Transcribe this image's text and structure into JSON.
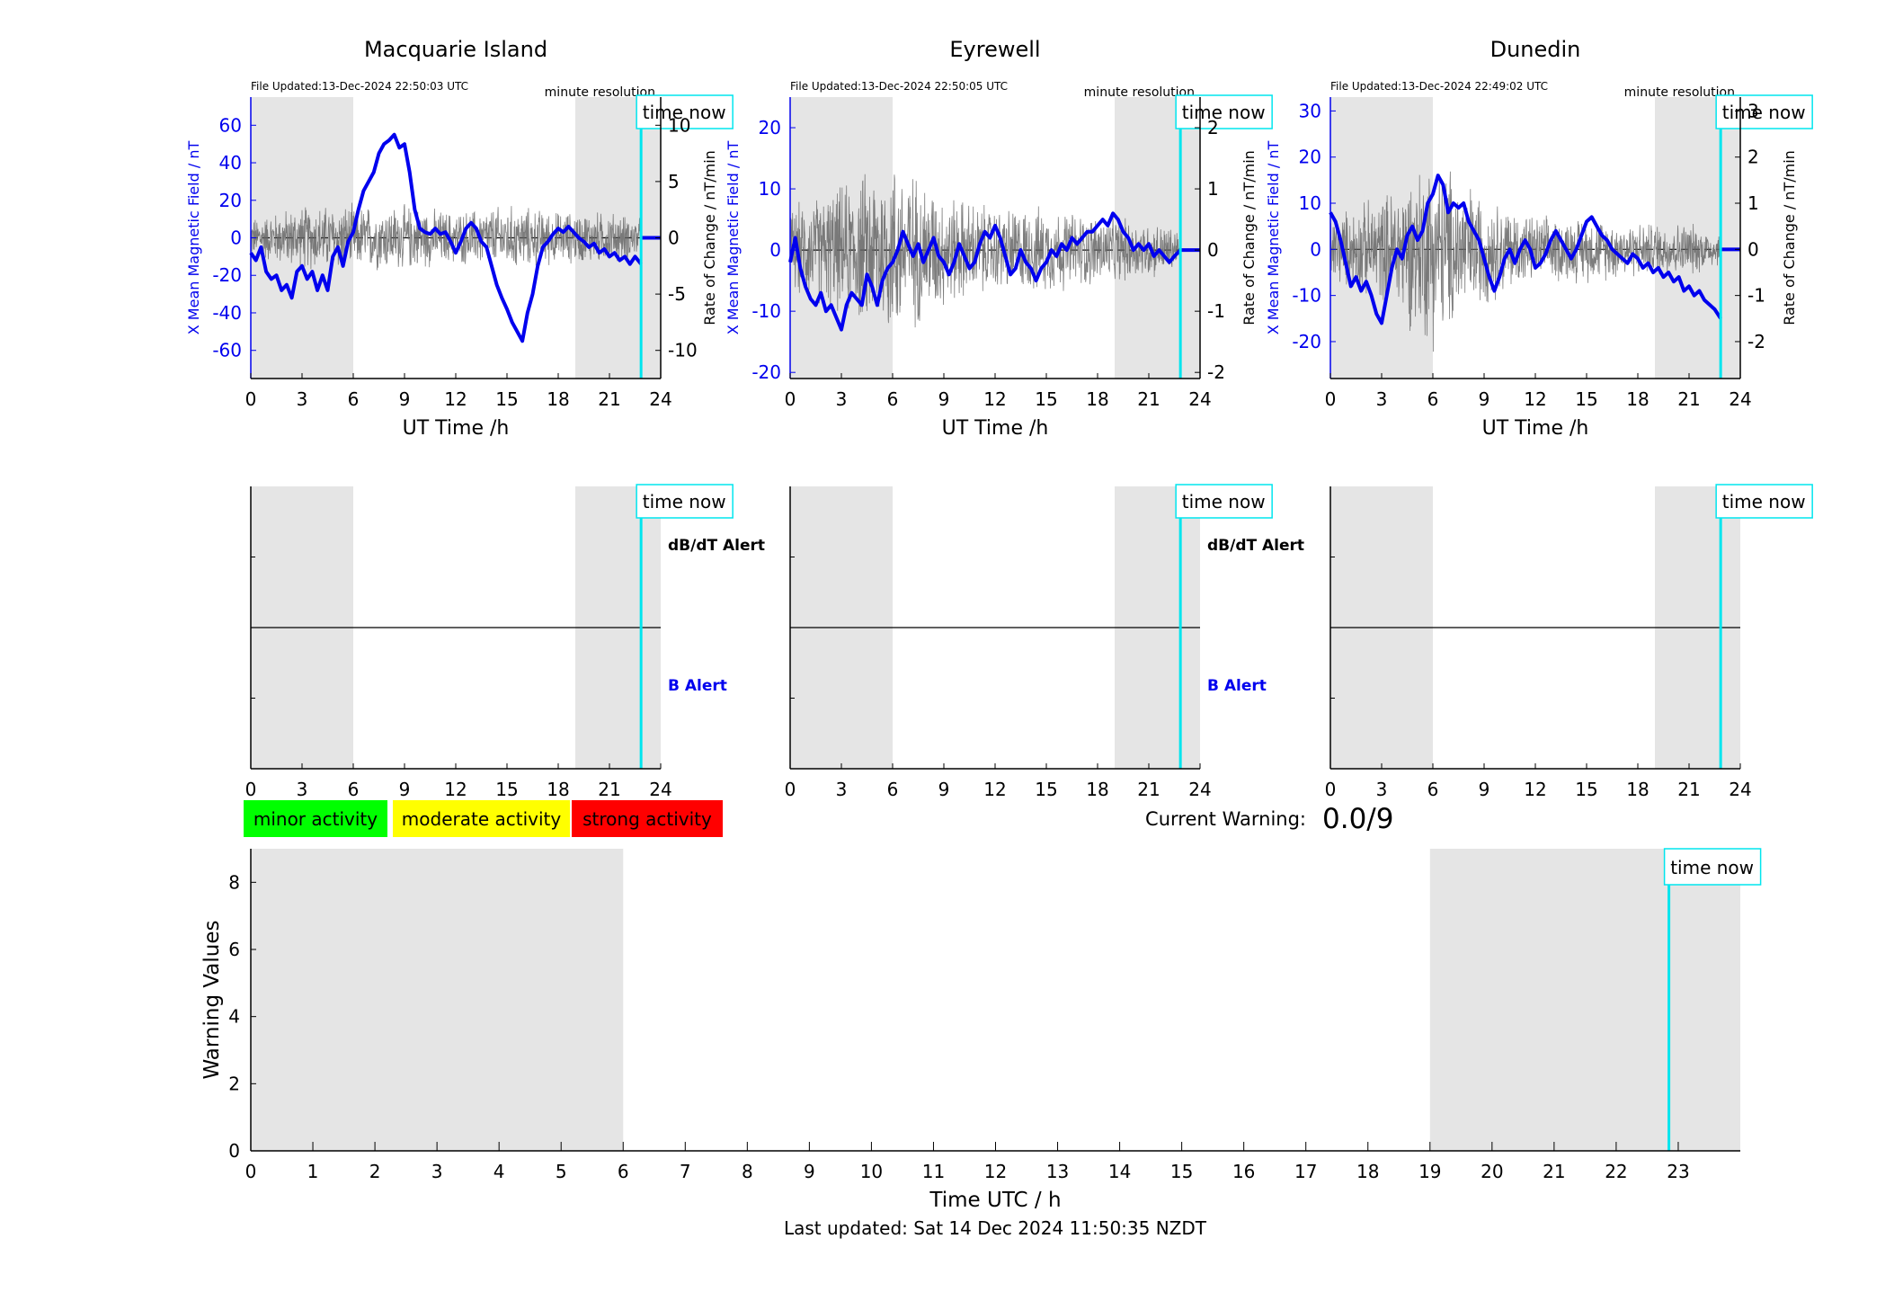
{
  "colors": {
    "b_series": "#0000ee",
    "db_series": "#666666",
    "night_shade": "#e5e5e5",
    "time_now": "#00e5ee",
    "minor": "#00ff00",
    "moderate": "#ffff00",
    "strong": "#ff0000"
  },
  "common": {
    "time_now_label": "time now",
    "minute_resolution": "minute resolution",
    "x_label": "UT Time /h",
    "b_axis_label": "X Mean Magnetic Field / nT",
    "rate_axis_label": "Rate of Change / nT/min",
    "dbdt_alert_label": "dB/dT Alert",
    "b_alert_label": "B Alert",
    "x_ticks": [
      0,
      3,
      6,
      9,
      12,
      15,
      18,
      21,
      24
    ],
    "time_now_h": 22.85
  },
  "stations": [
    {
      "name": "Macquarie Island",
      "file_updated": "File Updated:13-Dec-2024 22:50:03 UTC",
      "y_ticks": [
        60,
        40,
        20,
        0,
        -20,
        -40,
        -60
      ],
      "ylim": [
        -75,
        75
      ],
      "right_ticks": [
        10,
        5,
        0,
        -5,
        -10
      ],
      "rlim": [
        -12.5,
        12.5
      ],
      "shade": [
        [
          0,
          6
        ],
        [
          19,
          24
        ]
      ],
      "show_alert_labels": true,
      "b_points": [
        [
          0,
          -8
        ],
        [
          0.3,
          -12
        ],
        [
          0.6,
          -5
        ],
        [
          0.9,
          -18
        ],
        [
          1.2,
          -22
        ],
        [
          1.5,
          -20
        ],
        [
          1.8,
          -28
        ],
        [
          2.1,
          -25
        ],
        [
          2.4,
          -32
        ],
        [
          2.7,
          -18
        ],
        [
          3,
          -15
        ],
        [
          3.3,
          -22
        ],
        [
          3.6,
          -18
        ],
        [
          3.9,
          -28
        ],
        [
          4.2,
          -20
        ],
        [
          4.5,
          -28
        ],
        [
          4.8,
          -10
        ],
        [
          5.1,
          -5
        ],
        [
          5.4,
          -15
        ],
        [
          5.7,
          -2
        ],
        [
          6,
          3
        ],
        [
          6.3,
          15
        ],
        [
          6.6,
          25
        ],
        [
          6.9,
          30
        ],
        [
          7.2,
          35
        ],
        [
          7.5,
          45
        ],
        [
          7.8,
          50
        ],
        [
          8.1,
          52
        ],
        [
          8.4,
          55
        ],
        [
          8.7,
          48
        ],
        [
          9,
          50
        ],
        [
          9.3,
          35
        ],
        [
          9.6,
          15
        ],
        [
          9.9,
          5
        ],
        [
          10.2,
          3
        ],
        [
          10.5,
          2
        ],
        [
          10.8,
          5
        ],
        [
          11.1,
          2
        ],
        [
          11.4,
          3
        ],
        [
          11.7,
          -2
        ],
        [
          12,
          -8
        ],
        [
          12.3,
          -2
        ],
        [
          12.6,
          5
        ],
        [
          12.9,
          8
        ],
        [
          13.2,
          5
        ],
        [
          13.5,
          -2
        ],
        [
          13.8,
          -5
        ],
        [
          14.1,
          -15
        ],
        [
          14.4,
          -25
        ],
        [
          14.7,
          -32
        ],
        [
          15,
          -38
        ],
        [
          15.3,
          -45
        ],
        [
          15.6,
          -50
        ],
        [
          15.9,
          -55
        ],
        [
          16.2,
          -40
        ],
        [
          16.5,
          -30
        ],
        [
          16.8,
          -15
        ],
        [
          17.1,
          -5
        ],
        [
          17.4,
          -2
        ],
        [
          17.7,
          2
        ],
        [
          18,
          5
        ],
        [
          18.3,
          3
        ],
        [
          18.6,
          6
        ],
        [
          18.9,
          3
        ],
        [
          19.2,
          0
        ],
        [
          19.5,
          -2
        ],
        [
          19.8,
          -5
        ],
        [
          20.1,
          -3
        ],
        [
          20.4,
          -8
        ],
        [
          20.7,
          -6
        ],
        [
          21,
          -10
        ],
        [
          21.3,
          -8
        ],
        [
          21.6,
          -12
        ],
        [
          21.9,
          -10
        ],
        [
          22.2,
          -14
        ],
        [
          22.5,
          -10
        ],
        [
          22.85,
          -14
        ]
      ],
      "db_envelope": [
        [
          0,
          1.5
        ],
        [
          3,
          2.5
        ],
        [
          6,
          2.5
        ],
        [
          9,
          2.5
        ],
        [
          12,
          2
        ],
        [
          15,
          2.5
        ],
        [
          18,
          2
        ],
        [
          21,
          2
        ],
        [
          22.85,
          1.5
        ]
      ]
    },
    {
      "name": "Eyrewell",
      "file_updated": "File Updated:13-Dec-2024 22:50:05 UTC",
      "y_ticks": [
        20,
        10,
        0,
        -10,
        -20
      ],
      "ylim": [
        -21,
        25
      ],
      "right_ticks": [
        2,
        1,
        0,
        -1,
        -2
      ],
      "rlim": [
        -2.1,
        2.5
      ],
      "shade": [
        [
          0,
          6
        ],
        [
          19,
          24
        ]
      ],
      "show_alert_labels": true,
      "b_points": [
        [
          0,
          -2
        ],
        [
          0.3,
          2
        ],
        [
          0.6,
          -3
        ],
        [
          0.9,
          -6
        ],
        [
          1.2,
          -8
        ],
        [
          1.5,
          -9
        ],
        [
          1.8,
          -7
        ],
        [
          2.1,
          -10
        ],
        [
          2.4,
          -9
        ],
        [
          2.7,
          -11
        ],
        [
          3,
          -13
        ],
        [
          3.3,
          -9
        ],
        [
          3.6,
          -7
        ],
        [
          3.9,
          -8
        ],
        [
          4.2,
          -9
        ],
        [
          4.5,
          -4
        ],
        [
          4.8,
          -6
        ],
        [
          5.1,
          -9
        ],
        [
          5.4,
          -5
        ],
        [
          5.7,
          -3
        ],
        [
          6,
          -2
        ],
        [
          6.3,
          0
        ],
        [
          6.6,
          3
        ],
        [
          6.9,
          1
        ],
        [
          7.2,
          -1
        ],
        [
          7.5,
          1
        ],
        [
          7.8,
          -2
        ],
        [
          8.1,
          0
        ],
        [
          8.4,
          2
        ],
        [
          8.7,
          -1
        ],
        [
          9,
          -2
        ],
        [
          9.3,
          -4
        ],
        [
          9.6,
          -2
        ],
        [
          9.9,
          1
        ],
        [
          10.2,
          -1
        ],
        [
          10.5,
          -3
        ],
        [
          10.8,
          -2
        ],
        [
          11.1,
          1
        ],
        [
          11.4,
          3
        ],
        [
          11.7,
          2
        ],
        [
          12,
          4
        ],
        [
          12.3,
          2
        ],
        [
          12.6,
          -1
        ],
        [
          12.9,
          -4
        ],
        [
          13.2,
          -3
        ],
        [
          13.5,
          0
        ],
        [
          13.8,
          -2
        ],
        [
          14.1,
          -3
        ],
        [
          14.4,
          -5
        ],
        [
          14.7,
          -3
        ],
        [
          15,
          -2
        ],
        [
          15.3,
          0
        ],
        [
          15.6,
          -1
        ],
        [
          15.9,
          1
        ],
        [
          16.2,
          0
        ],
        [
          16.5,
          2
        ],
        [
          16.8,
          1
        ],
        [
          17.1,
          2
        ],
        [
          17.4,
          3
        ],
        [
          17.7,
          3
        ],
        [
          18,
          4
        ],
        [
          18.3,
          5
        ],
        [
          18.6,
          4
        ],
        [
          18.9,
          6
        ],
        [
          19.2,
          5
        ],
        [
          19.5,
          3
        ],
        [
          19.8,
          2
        ],
        [
          20.1,
          0
        ],
        [
          20.4,
          1
        ],
        [
          20.7,
          0
        ],
        [
          21,
          1
        ],
        [
          21.3,
          -1
        ],
        [
          21.6,
          0
        ],
        [
          21.9,
          -1
        ],
        [
          22.2,
          -2
        ],
        [
          22.5,
          -1
        ],
        [
          22.85,
          0
        ]
      ],
      "db_envelope": [
        [
          0,
          0.6
        ],
        [
          3,
          0.9
        ],
        [
          6,
          1.3
        ],
        [
          9,
          0.8
        ],
        [
          12,
          0.6
        ],
        [
          15,
          0.6
        ],
        [
          18,
          0.5
        ],
        [
          21,
          0.4
        ],
        [
          22.85,
          0.3
        ]
      ]
    },
    {
      "name": "Dunedin",
      "file_updated": "File Updated:13-Dec-2024 22:49:02 UTC",
      "y_ticks": [
        30,
        20,
        10,
        0,
        -10,
        -20
      ],
      "ylim": [
        -28,
        33
      ],
      "right_ticks": [
        3,
        2,
        1,
        0,
        -1,
        -2
      ],
      "rlim": [
        -2.8,
        3.3
      ],
      "shade": [
        [
          0,
          6
        ],
        [
          19,
          24
        ]
      ],
      "show_alert_labels": false,
      "b_points": [
        [
          0,
          8
        ],
        [
          0.3,
          6
        ],
        [
          0.6,
          2
        ],
        [
          0.9,
          -3
        ],
        [
          1.2,
          -8
        ],
        [
          1.5,
          -6
        ],
        [
          1.8,
          -9
        ],
        [
          2.1,
          -7
        ],
        [
          2.4,
          -10
        ],
        [
          2.7,
          -14
        ],
        [
          3,
          -16
        ],
        [
          3.3,
          -10
        ],
        [
          3.6,
          -4
        ],
        [
          3.9,
          0
        ],
        [
          4.2,
          -2
        ],
        [
          4.5,
          3
        ],
        [
          4.8,
          5
        ],
        [
          5.1,
          2
        ],
        [
          5.4,
          4
        ],
        [
          5.7,
          10
        ],
        [
          6,
          12
        ],
        [
          6.3,
          16
        ],
        [
          6.6,
          14
        ],
        [
          6.9,
          8
        ],
        [
          7.2,
          10
        ],
        [
          7.5,
          9
        ],
        [
          7.8,
          10
        ],
        [
          8.1,
          6
        ],
        [
          8.4,
          4
        ],
        [
          8.7,
          2
        ],
        [
          9,
          -2
        ],
        [
          9.3,
          -6
        ],
        [
          9.6,
          -9
        ],
        [
          9.9,
          -6
        ],
        [
          10.2,
          -2
        ],
        [
          10.5,
          0
        ],
        [
          10.8,
          -3
        ],
        [
          11.1,
          0
        ],
        [
          11.4,
          2
        ],
        [
          11.7,
          0
        ],
        [
          12,
          -4
        ],
        [
          12.3,
          -3
        ],
        [
          12.6,
          -1
        ],
        [
          12.9,
          2
        ],
        [
          13.2,
          4
        ],
        [
          13.5,
          2
        ],
        [
          13.8,
          0
        ],
        [
          14.1,
          -2
        ],
        [
          14.4,
          0
        ],
        [
          14.7,
          3
        ],
        [
          15,
          6
        ],
        [
          15.3,
          7
        ],
        [
          15.6,
          5
        ],
        [
          15.9,
          3
        ],
        [
          16.2,
          2
        ],
        [
          16.5,
          0
        ],
        [
          16.8,
          -1
        ],
        [
          17.1,
          -2
        ],
        [
          17.4,
          -3
        ],
        [
          17.7,
          -1
        ],
        [
          18,
          -2
        ],
        [
          18.3,
          -4
        ],
        [
          18.6,
          -3
        ],
        [
          18.9,
          -5
        ],
        [
          19.2,
          -4
        ],
        [
          19.5,
          -6
        ],
        [
          19.8,
          -5
        ],
        [
          20.1,
          -7
        ],
        [
          20.4,
          -6
        ],
        [
          20.7,
          -9
        ],
        [
          21,
          -8
        ],
        [
          21.3,
          -10
        ],
        [
          21.6,
          -9
        ],
        [
          21.9,
          -11
        ],
        [
          22.2,
          -12
        ],
        [
          22.5,
          -13
        ],
        [
          22.85,
          -15
        ]
      ],
      "db_envelope": [
        [
          0,
          0.6
        ],
        [
          3,
          1
        ],
        [
          6,
          1.8
        ],
        [
          9,
          1
        ],
        [
          12,
          0.6
        ],
        [
          15,
          0.6
        ],
        [
          18,
          0.5
        ],
        [
          21,
          0.5
        ],
        [
          22.85,
          0.3
        ]
      ]
    }
  ],
  "legend": {
    "minor": "minor activity",
    "moderate": "moderate activity",
    "strong": "strong activity"
  },
  "current_warning": {
    "label": "Current Warning:",
    "value": "0.0/9"
  },
  "chart_data": {
    "type": "bar",
    "ylabel": "Warning Values",
    "xlabel": "Time UTC / h",
    "ylim": [
      0,
      9
    ],
    "y_ticks": [
      0,
      2,
      4,
      6,
      8
    ],
    "x_ticks": [
      0,
      1,
      2,
      3,
      4,
      5,
      6,
      7,
      8,
      9,
      10,
      11,
      12,
      13,
      14,
      15,
      16,
      17,
      18,
      19,
      20,
      21,
      22,
      23
    ],
    "xlim": [
      0,
      24
    ],
    "shade": [
      [
        0,
        6
      ],
      [
        19,
        24
      ]
    ],
    "time_now_h": 22.85,
    "values": []
  },
  "footer": "Last updated: Sat 14 Dec 2024 11:50:35 NZDT"
}
